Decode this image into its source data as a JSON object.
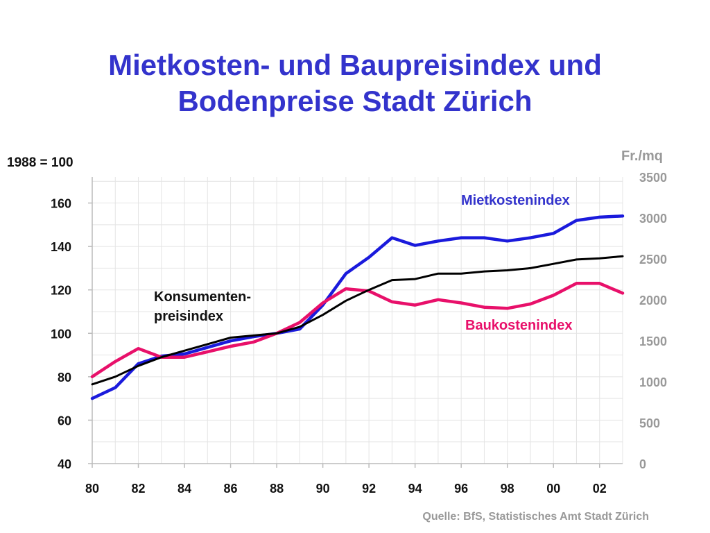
{
  "title_lines": [
    "Mietkosten- und Baupreisindex und",
    "Bodenpreise Stadt Zürich"
  ],
  "left_axis_caption": "1988 = 100",
  "right_axis_caption": "Fr./mq",
  "source": "Quelle: BfS, Statistisches Amt Stadt Zürich",
  "chart_data": {
    "type": "line",
    "title": "Mietkosten- und Baupreisindex und Bodenpreise Stadt Zürich",
    "x": [
      80,
      81,
      82,
      83,
      84,
      85,
      86,
      87,
      88,
      89,
      90,
      91,
      92,
      93,
      94,
      95,
      96,
      97,
      98,
      99,
      100,
      101,
      102,
      103
    ],
    "xlim": [
      80,
      103
    ],
    "xticks": [
      "80",
      "82",
      "84",
      "86",
      "88",
      "90",
      "92",
      "94",
      "96",
      "98",
      "00",
      "02"
    ],
    "xtick_values": [
      80,
      82,
      84,
      86,
      88,
      90,
      92,
      94,
      96,
      98,
      100,
      102
    ],
    "ylim": [
      40,
      172
    ],
    "yticks": [
      "40",
      "60",
      "80",
      "100",
      "120",
      "140",
      "160"
    ],
    "ytick_values": [
      40,
      60,
      80,
      100,
      120,
      140,
      160
    ],
    "y2lim": [
      0,
      3500
    ],
    "y2ticks": [
      "0",
      "500",
      "1000",
      "1500",
      "2000",
      "2500",
      "3000",
      "3500"
    ],
    "y2tick_values": [
      0,
      500,
      1000,
      1500,
      2000,
      2500,
      3000,
      3500
    ],
    "grid": true,
    "series": [
      {
        "name": "Mietkostenindex",
        "color": "#1a1adc",
        "values": [
          70,
          75,
          86,
          89.5,
          90.5,
          93.5,
          96.5,
          98.5,
          100,
          102,
          113,
          127.5,
          135,
          144,
          140.5,
          142.5,
          144,
          144,
          142.5,
          144,
          146,
          152,
          153.5,
          154
        ]
      },
      {
        "name": "Baukostenindex",
        "color": "#e8106a",
        "values": [
          80,
          87,
          93,
          89,
          89,
          91.5,
          94,
          96,
          100,
          105,
          114,
          120.5,
          119.5,
          114.5,
          113,
          115.5,
          114,
          112,
          111.5,
          113.5,
          117.5,
          123,
          123,
          118.5
        ]
      },
      {
        "name": "Konsumenten-\npreisindex",
        "color": "#000000",
        "values": [
          76.5,
          80,
          85,
          89,
          92,
          95,
          98,
          99,
          100,
          103,
          108.5,
          115,
          120,
          124.5,
          125,
          127.5,
          127.5,
          128.5,
          129,
          130,
          132,
          134,
          134.5,
          135.5
        ]
      }
    ],
    "series_labels": [
      {
        "text": "Mietkostenindex",
        "color": "#3333cc"
      },
      {
        "text": "Baukostenindex",
        "color": "#e8106a"
      },
      {
        "text_lines": [
          "Konsumenten-",
          "preisindex"
        ],
        "color": "#111111"
      }
    ]
  }
}
